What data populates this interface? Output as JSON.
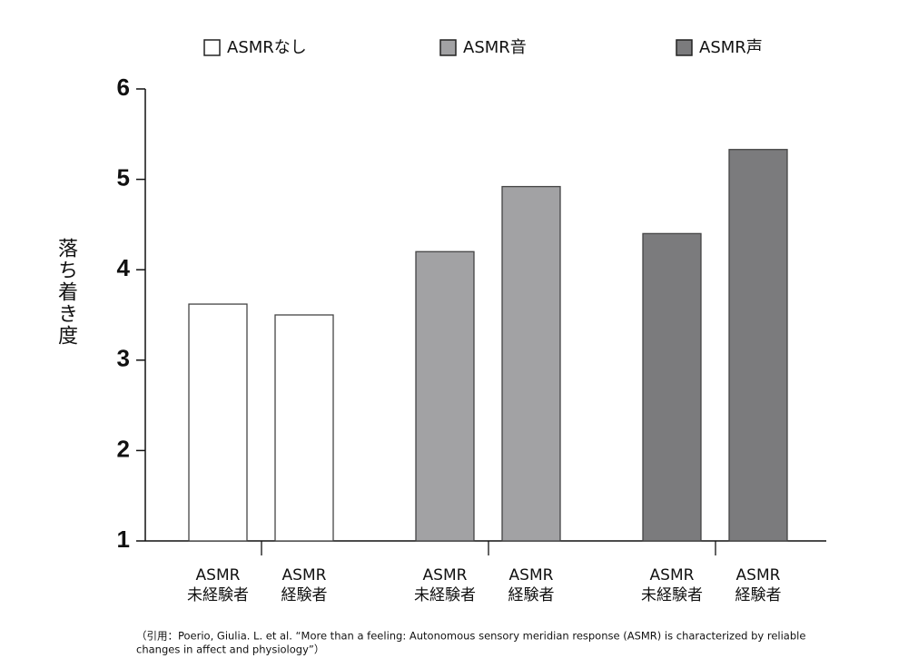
{
  "chart_data": {
    "type": "bar",
    "categories": [
      [
        "ASMR",
        "未経験者"
      ],
      [
        "ASMR",
        "経験者"
      ]
    ],
    "series": [
      {
        "name": "ASMRなし",
        "color": "#ffffff",
        "values": [
          3.62,
          3.5
        ]
      },
      {
        "name": "ASMR音",
        "color": "#a2a2a4",
        "values": [
          4.2,
          4.92
        ]
      },
      {
        "name": "ASMR声",
        "color": "#7b7b7d",
        "values": [
          4.4,
          5.33
        ]
      }
    ],
    "y_label": "落ち着き度",
    "ylim": [
      1,
      6
    ],
    "yticks": [
      1,
      2,
      3,
      4,
      5,
      6
    ],
    "grid": false,
    "source": [
      "（引用：Poerio, Giulia. L. et al. “More than a feeling: Autonomous sensory meridian response (ASMR) is characterized by reliable",
      "changes in affect and physiology”）"
    ]
  }
}
